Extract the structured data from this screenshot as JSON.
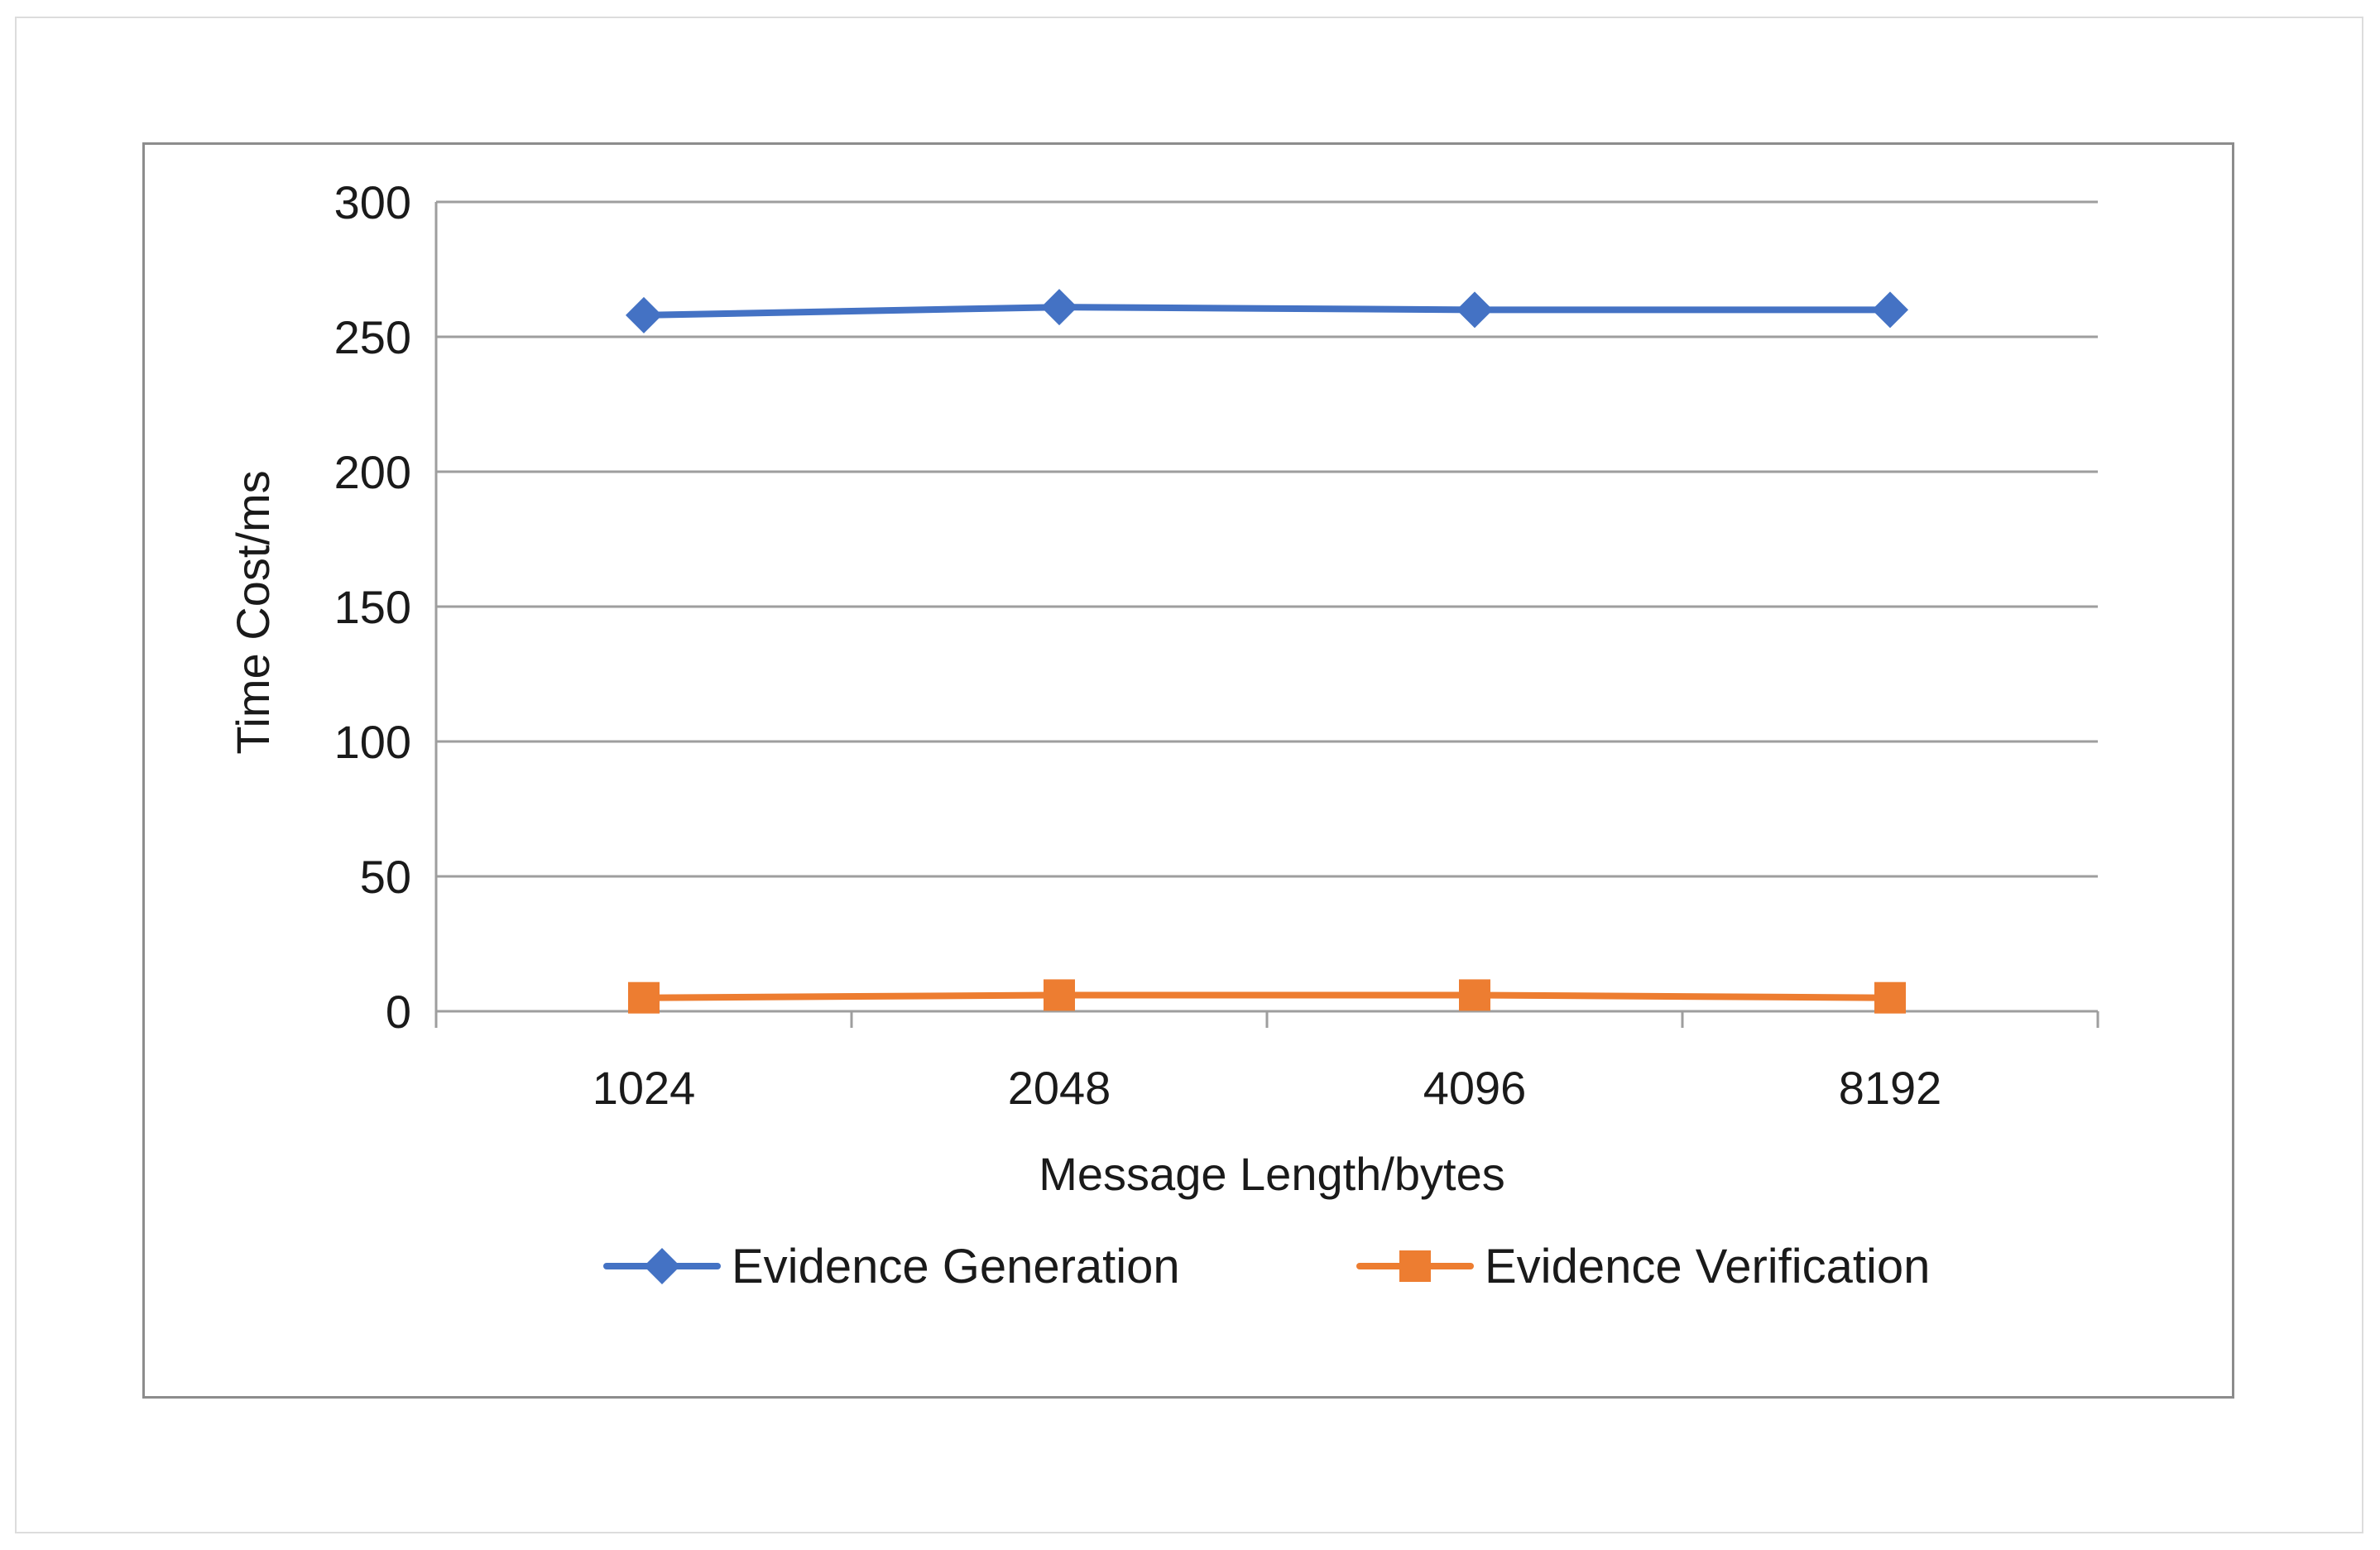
{
  "chart_data": {
    "type": "line",
    "title": "",
    "xlabel": "Message Length/bytes",
    "ylabel": "Time Cost/ms",
    "categories": [
      "1024",
      "2048",
      "4096",
      "8192"
    ],
    "ylim": [
      0,
      300
    ],
    "yticks": [
      0,
      50,
      100,
      150,
      200,
      250,
      300
    ],
    "grid": true,
    "legend_position": "bottom",
    "series": [
      {
        "name": "Evidence Generation",
        "values": [
          258,
          261,
          260,
          260
        ],
        "color": "#4472C4",
        "marker": "diamond"
      },
      {
        "name": "Evidence Verification",
        "values": [
          5,
          6,
          6,
          5
        ],
        "color": "#ED7D31",
        "marker": "square"
      }
    ]
  }
}
